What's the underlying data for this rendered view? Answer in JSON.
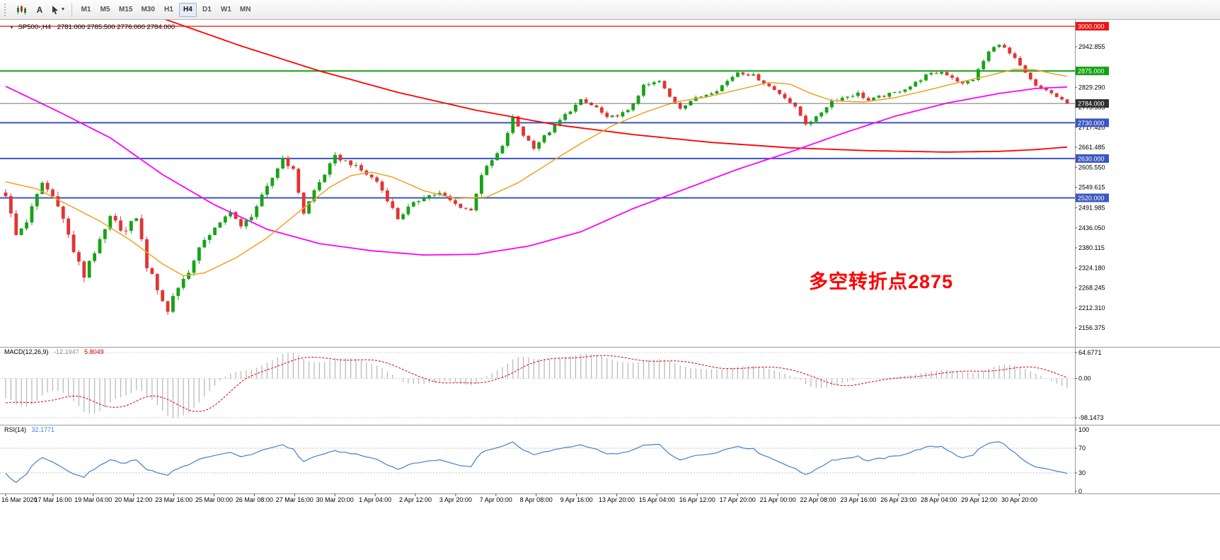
{
  "toolbar": {
    "text_tool_label": "A",
    "timeframes": [
      "M1",
      "M5",
      "M15",
      "M30",
      "H1",
      "H4",
      "D1",
      "W1",
      "MN"
    ],
    "active_timeframe": "H4"
  },
  "chart": {
    "symbol_label": "SP500-,H4",
    "ohlc_label": "2781.000 2785.500 2776.000 2784.000",
    "annotation_text": "多空转折点2875",
    "annotation_color": "#ff0000"
  },
  "macd_panel": {
    "name_label": "MACD(12,26,9)",
    "main_value": "-12.1947",
    "signal_value": "5.8049"
  },
  "rsi_panel": {
    "name_label": "RSI(14)",
    "value": "32.1771"
  },
  "chart_data": {
    "type": "candlestick",
    "symbol": "SP500-",
    "timeframe": "H4",
    "bars": 204,
    "ylim": [
      2103,
      3018
    ],
    "current_price": 2784.0,
    "candle_colors": {
      "up": "#17a317",
      "down": "#e23434"
    },
    "y_ticks": [
      2942.855,
      2829.29,
      2773.555,
      2717.42,
      2661.485,
      2605.55,
      2549.615,
      2491.985,
      2436.05,
      2380.115,
      2324.18,
      2268.245,
      2212.31,
      2156.375
    ],
    "hlines": [
      {
        "price": 3000.0,
        "color": "#ee1111",
        "width": 1.3,
        "label": "3000.000"
      },
      {
        "price": 2875.0,
        "color": "#11a011",
        "width": 2,
        "label": "2875.000"
      },
      {
        "price": 2730.0,
        "color": "#3a55c0",
        "width": 2,
        "label": "2730.000"
      },
      {
        "price": 2630.0,
        "color": "#3a55c0",
        "width": 2,
        "label": "2630.000"
      },
      {
        "price": 2520.0,
        "color": "#3a55c0",
        "width": 2,
        "label": "2520.000"
      }
    ],
    "bid_line": {
      "price": 2784.0,
      "color": "#444444",
      "tag_bg": "#2e2e2e",
      "label": "2784.000"
    },
    "close_anchors": [
      [
        0,
        2530
      ],
      [
        2,
        2415
      ],
      [
        4,
        2455
      ],
      [
        7,
        2562
      ],
      [
        10,
        2505
      ],
      [
        13,
        2370
      ],
      [
        15,
        2300
      ],
      [
        16,
        2345
      ],
      [
        18,
        2395
      ],
      [
        20,
        2462
      ],
      [
        23,
        2425
      ],
      [
        25,
        2468
      ],
      [
        27,
        2330
      ],
      [
        29,
        2268
      ],
      [
        31,
        2200
      ],
      [
        32,
        2248
      ],
      [
        34,
        2292
      ],
      [
        36,
        2342
      ],
      [
        38,
        2406
      ],
      [
        41,
        2446
      ],
      [
        43,
        2486
      ],
      [
        45,
        2436
      ],
      [
        47,
        2472
      ],
      [
        50,
        2548
      ],
      [
        53,
        2632
      ],
      [
        55,
        2596
      ],
      [
        57,
        2478
      ],
      [
        59,
        2540
      ],
      [
        63,
        2635
      ],
      [
        66,
        2616
      ],
      [
        69,
        2586
      ],
      [
        71,
        2566
      ],
      [
        73,
        2516
      ],
      [
        75,
        2462
      ],
      [
        77,
        2492
      ],
      [
        80,
        2524
      ],
      [
        83,
        2532
      ],
      [
        86,
        2502
      ],
      [
        89,
        2484
      ],
      [
        91,
        2586
      ],
      [
        95,
        2662
      ],
      [
        97,
        2744
      ],
      [
        99,
        2696
      ],
      [
        101,
        2662
      ],
      [
        104,
        2706
      ],
      [
        107,
        2752
      ],
      [
        110,
        2792
      ],
      [
        113,
        2772
      ],
      [
        115,
        2742
      ],
      [
        119,
        2762
      ],
      [
        122,
        2832
      ],
      [
        125,
        2846
      ],
      [
        127,
        2802
      ],
      [
        129,
        2772
      ],
      [
        131,
        2792
      ],
      [
        133,
        2804
      ],
      [
        136,
        2822
      ],
      [
        140,
        2872
      ],
      [
        143,
        2862
      ],
      [
        146,
        2832
      ],
      [
        149,
        2802
      ],
      [
        151,
        2772
      ],
      [
        153,
        2728
      ],
      [
        155,
        2744
      ],
      [
        158,
        2792
      ],
      [
        161,
        2804
      ],
      [
        163,
        2812
      ],
      [
        165,
        2792
      ],
      [
        167,
        2802
      ],
      [
        170,
        2814
      ],
      [
        173,
        2832
      ],
      [
        176,
        2862
      ],
      [
        179,
        2872
      ],
      [
        181,
        2858
      ],
      [
        183,
        2838
      ],
      [
        185,
        2852
      ],
      [
        188,
        2928
      ],
      [
        190,
        2952
      ],
      [
        191,
        2938
      ],
      [
        193,
        2908
      ],
      [
        195,
        2868
      ],
      [
        197,
        2832
      ],
      [
        199,
        2822
      ],
      [
        201,
        2802
      ],
      [
        203,
        2784
      ]
    ],
    "volatility_anchors": [
      [
        0,
        18
      ],
      [
        14,
        22
      ],
      [
        31,
        22
      ],
      [
        40,
        16
      ],
      [
        60,
        13
      ],
      [
        90,
        12
      ],
      [
        110,
        10
      ],
      [
        140,
        9
      ],
      [
        188,
        10
      ],
      [
        203,
        6
      ]
    ],
    "ma_lines": [
      {
        "name": "ma-slow-red",
        "color": "#ff0000",
        "width": 1.8,
        "points": [
          [
            0,
            3160
          ],
          [
            20,
            3075
          ],
          [
            30,
            3022
          ],
          [
            45,
            2945
          ],
          [
            60,
            2875
          ],
          [
            75,
            2815
          ],
          [
            90,
            2765
          ],
          [
            105,
            2725
          ],
          [
            120,
            2697
          ],
          [
            135,
            2675
          ],
          [
            150,
            2660
          ],
          [
            165,
            2652
          ],
          [
            180,
            2648
          ],
          [
            190,
            2650
          ],
          [
            197,
            2655
          ],
          [
            203,
            2662
          ]
        ]
      },
      {
        "name": "ma-mid-magenta",
        "color": "#ff00ff",
        "width": 1.8,
        "points": [
          [
            0,
            2832
          ],
          [
            10,
            2762
          ],
          [
            20,
            2688
          ],
          [
            30,
            2585
          ],
          [
            40,
            2500
          ],
          [
            50,
            2432
          ],
          [
            60,
            2392
          ],
          [
            70,
            2372
          ],
          [
            80,
            2360
          ],
          [
            90,
            2362
          ],
          [
            100,
            2385
          ],
          [
            110,
            2425
          ],
          [
            120,
            2490
          ],
          [
            130,
            2545
          ],
          [
            140,
            2600
          ],
          [
            150,
            2648
          ],
          [
            160,
            2700
          ],
          [
            170,
            2748
          ],
          [
            180,
            2785
          ],
          [
            190,
            2812
          ],
          [
            197,
            2826
          ],
          [
            203,
            2830
          ]
        ]
      },
      {
        "name": "ma-fast-orange",
        "color": "#efa320",
        "width": 1.5,
        "points": [
          [
            0,
            2565
          ],
          [
            6,
            2545
          ],
          [
            12,
            2500
          ],
          [
            18,
            2455
          ],
          [
            24,
            2400
          ],
          [
            30,
            2335
          ],
          [
            34,
            2302
          ],
          [
            38,
            2310
          ],
          [
            44,
            2352
          ],
          [
            50,
            2408
          ],
          [
            56,
            2480
          ],
          [
            62,
            2550
          ],
          [
            66,
            2582
          ],
          [
            70,
            2592
          ],
          [
            74,
            2578
          ],
          [
            80,
            2540
          ],
          [
            86,
            2518
          ],
          [
            92,
            2522
          ],
          [
            98,
            2562
          ],
          [
            104,
            2618
          ],
          [
            110,
            2672
          ],
          [
            116,
            2722
          ],
          [
            122,
            2758
          ],
          [
            128,
            2788
          ],
          [
            134,
            2802
          ],
          [
            140,
            2822
          ],
          [
            146,
            2843
          ],
          [
            150,
            2838
          ],
          [
            154,
            2812
          ],
          [
            158,
            2792
          ],
          [
            164,
            2788
          ],
          [
            170,
            2800
          ],
          [
            176,
            2820
          ],
          [
            182,
            2842
          ],
          [
            188,
            2862
          ],
          [
            193,
            2880
          ],
          [
            197,
            2878
          ],
          [
            200,
            2868
          ],
          [
            203,
            2860
          ]
        ]
      }
    ],
    "x_labels": [
      "16 Mar 2020",
      "17 Mar 16:00",
      "19 Mar 04:00",
      "20 Mar 12:00",
      "23 Mar 16:00",
      "25 Mar 00:00",
      "26 Mar 08:00",
      "27 Mar 16:00",
      "30 Mar 20:00",
      "1 Apr 04:00",
      "2 Apr 12:00",
      "3 Apr 20:00",
      "7 Apr 00:00",
      "8 Apr 08:00",
      "9 Apr 16:00",
      "13 Apr 20:00",
      "15 Apr 04:00",
      "16 Apr 12:00",
      "17 Apr 20:00",
      "21 Apr 00:00",
      "22 Apr 08:00",
      "23 Apr 16:00",
      "26 Apr 23:00",
      "28 Apr 04:00",
      "29 Apr 12:00",
      "30 Apr 20:00"
    ],
    "macd": {
      "fast": 12,
      "slow": 26,
      "signal": 9,
      "axis_max": 64.6771,
      "axis_min": -98.1473,
      "axis_labels": [
        "64.6771",
        "0.00",
        "-98.1473"
      ],
      "hist_color": "#b5b5b5",
      "signal_color": "#e00000"
    },
    "rsi": {
      "period": 14,
      "levels": [
        70,
        30
      ],
      "axis_labels": [
        "100",
        "70",
        "30",
        "0"
      ],
      "color": "#4080d0"
    }
  }
}
